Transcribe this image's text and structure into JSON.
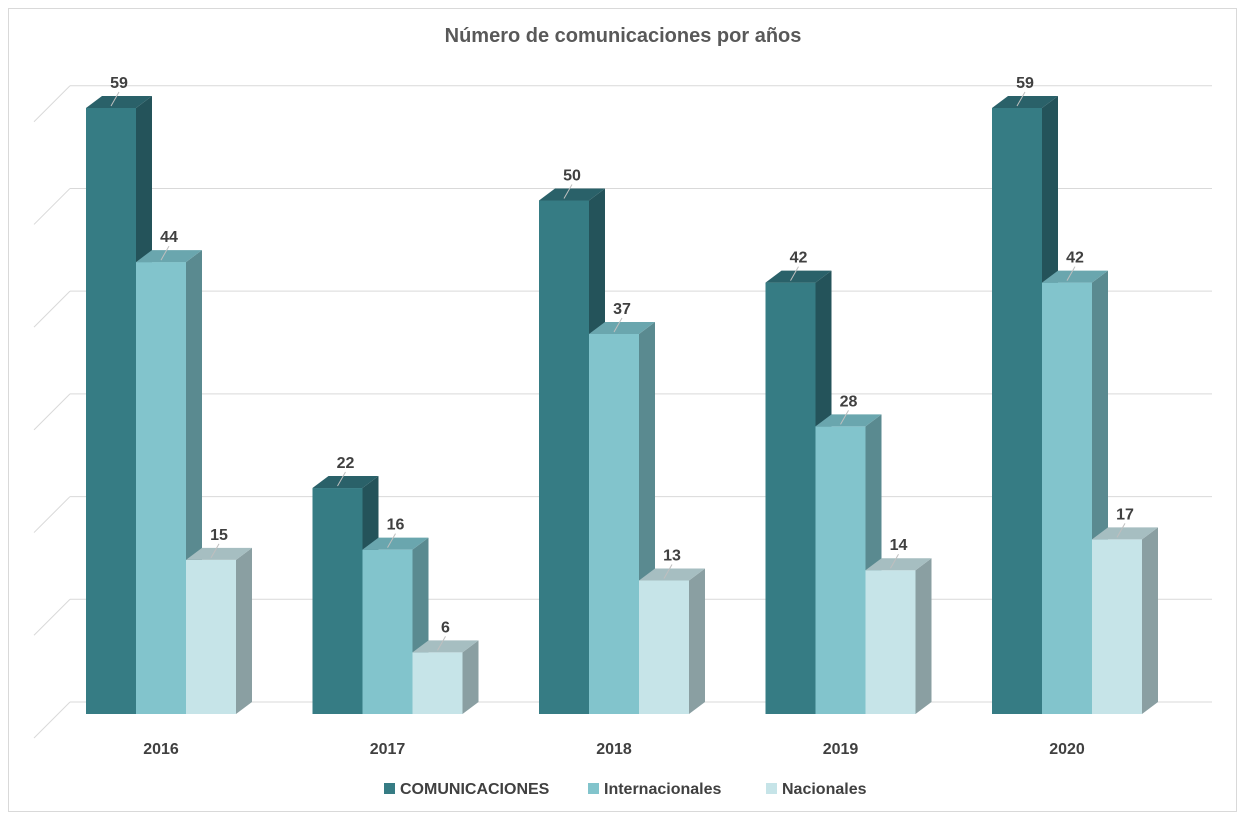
{
  "chart_data": {
    "type": "bar",
    "title": "Número de comunicaciones por años",
    "categories": [
      "2016",
      "2017",
      "2018",
      "2019",
      "2020"
    ],
    "series": [
      {
        "name": "COMUNICACIONES",
        "values": [
          59,
          22,
          50,
          42,
          59
        ],
        "color": "#367C84",
        "side_color": "#24535A",
        "top_color": "#2A6169"
      },
      {
        "name": "Internacionales",
        "values": [
          44,
          16,
          37,
          28,
          42
        ],
        "color": "#82C4CC",
        "side_color": "#5A8A90",
        "top_color": "#6AA6AE"
      },
      {
        "name": "Nacionales",
        "values": [
          15,
          6,
          13,
          14,
          17
        ],
        "color": "#C6E4E8",
        "side_color": "#8A9FA2",
        "top_color": "#A6BEC1"
      }
    ],
    "ylim": [
      0,
      60
    ],
    "grid": true,
    "data_labels": true,
    "legend_position": "bottom",
    "projection": "3d-column"
  }
}
